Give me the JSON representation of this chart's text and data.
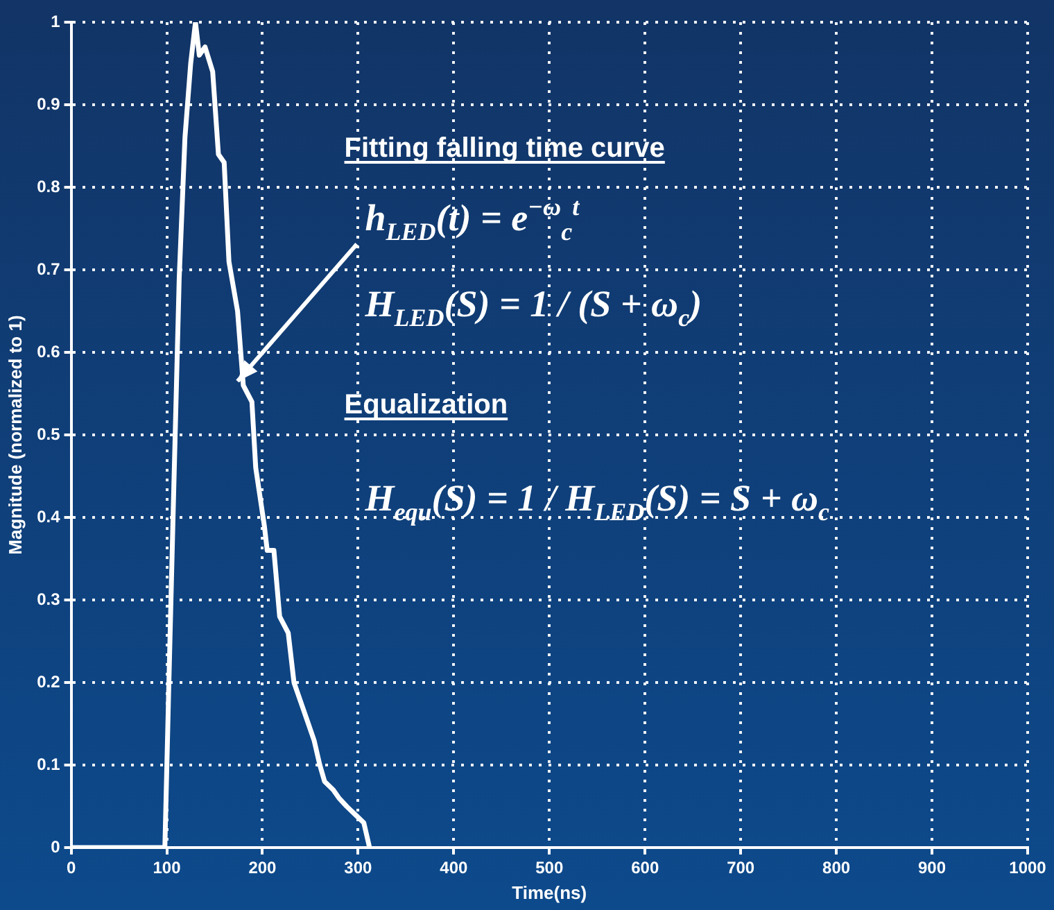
{
  "chart_data": {
    "type": "line",
    "xlabel": "Time(ns)",
    "ylabel": "Magnitude (normalized to 1)",
    "xlim": [
      0,
      1000
    ],
    "xticks": [
      0,
      100,
      200,
      300,
      400,
      500,
      600,
      700,
      800,
      900,
      1000
    ],
    "ylim": [
      0,
      1
    ],
    "yticks": [
      0,
      0.1,
      0.2,
      0.3,
      0.4,
      0.5,
      0.6,
      0.7,
      0.8,
      0.9,
      1
    ],
    "grid": true,
    "legend": false,
    "marker": "none",
    "series": [
      {
        "color": "#ffffff",
        "x": [
          0,
          98,
          102,
          107,
          113,
          119,
          125,
          130,
          134,
          140,
          148,
          154,
          160,
          165,
          174,
          180,
          189,
          193,
          202,
          205,
          212,
          218,
          227,
          233,
          242,
          248,
          254,
          260,
          265,
          274,
          280,
          288,
          297,
          306,
          312
        ],
        "values": [
          0,
          0,
          0.19,
          0.42,
          0.69,
          0.86,
          0.95,
          1.0,
          0.96,
          0.97,
          0.94,
          0.84,
          0.83,
          0.71,
          0.65,
          0.56,
          0.54,
          0.46,
          0.39,
          0.36,
          0.36,
          0.28,
          0.26,
          0.2,
          0.17,
          0.15,
          0.13,
          0.1,
          0.08,
          0.07,
          0.06,
          0.05,
          0.04,
          0.03,
          0
        ]
      }
    ],
    "annotations": [
      "Fitting falling time curve",
      {
        "text": "h$_{LED}$(t) = e$^{−ω}$$_{c}$$^{t}$",
        "x": 174,
        "y": 0.565
      },
      "H$_{LED}$(S) = 1 / (S + ω$_{c}$)",
      "Equalization",
      "H$_{equ}$(S) = 1 / H$_{LED}$(S) = S + ω$_{c}$"
    ]
  }
}
